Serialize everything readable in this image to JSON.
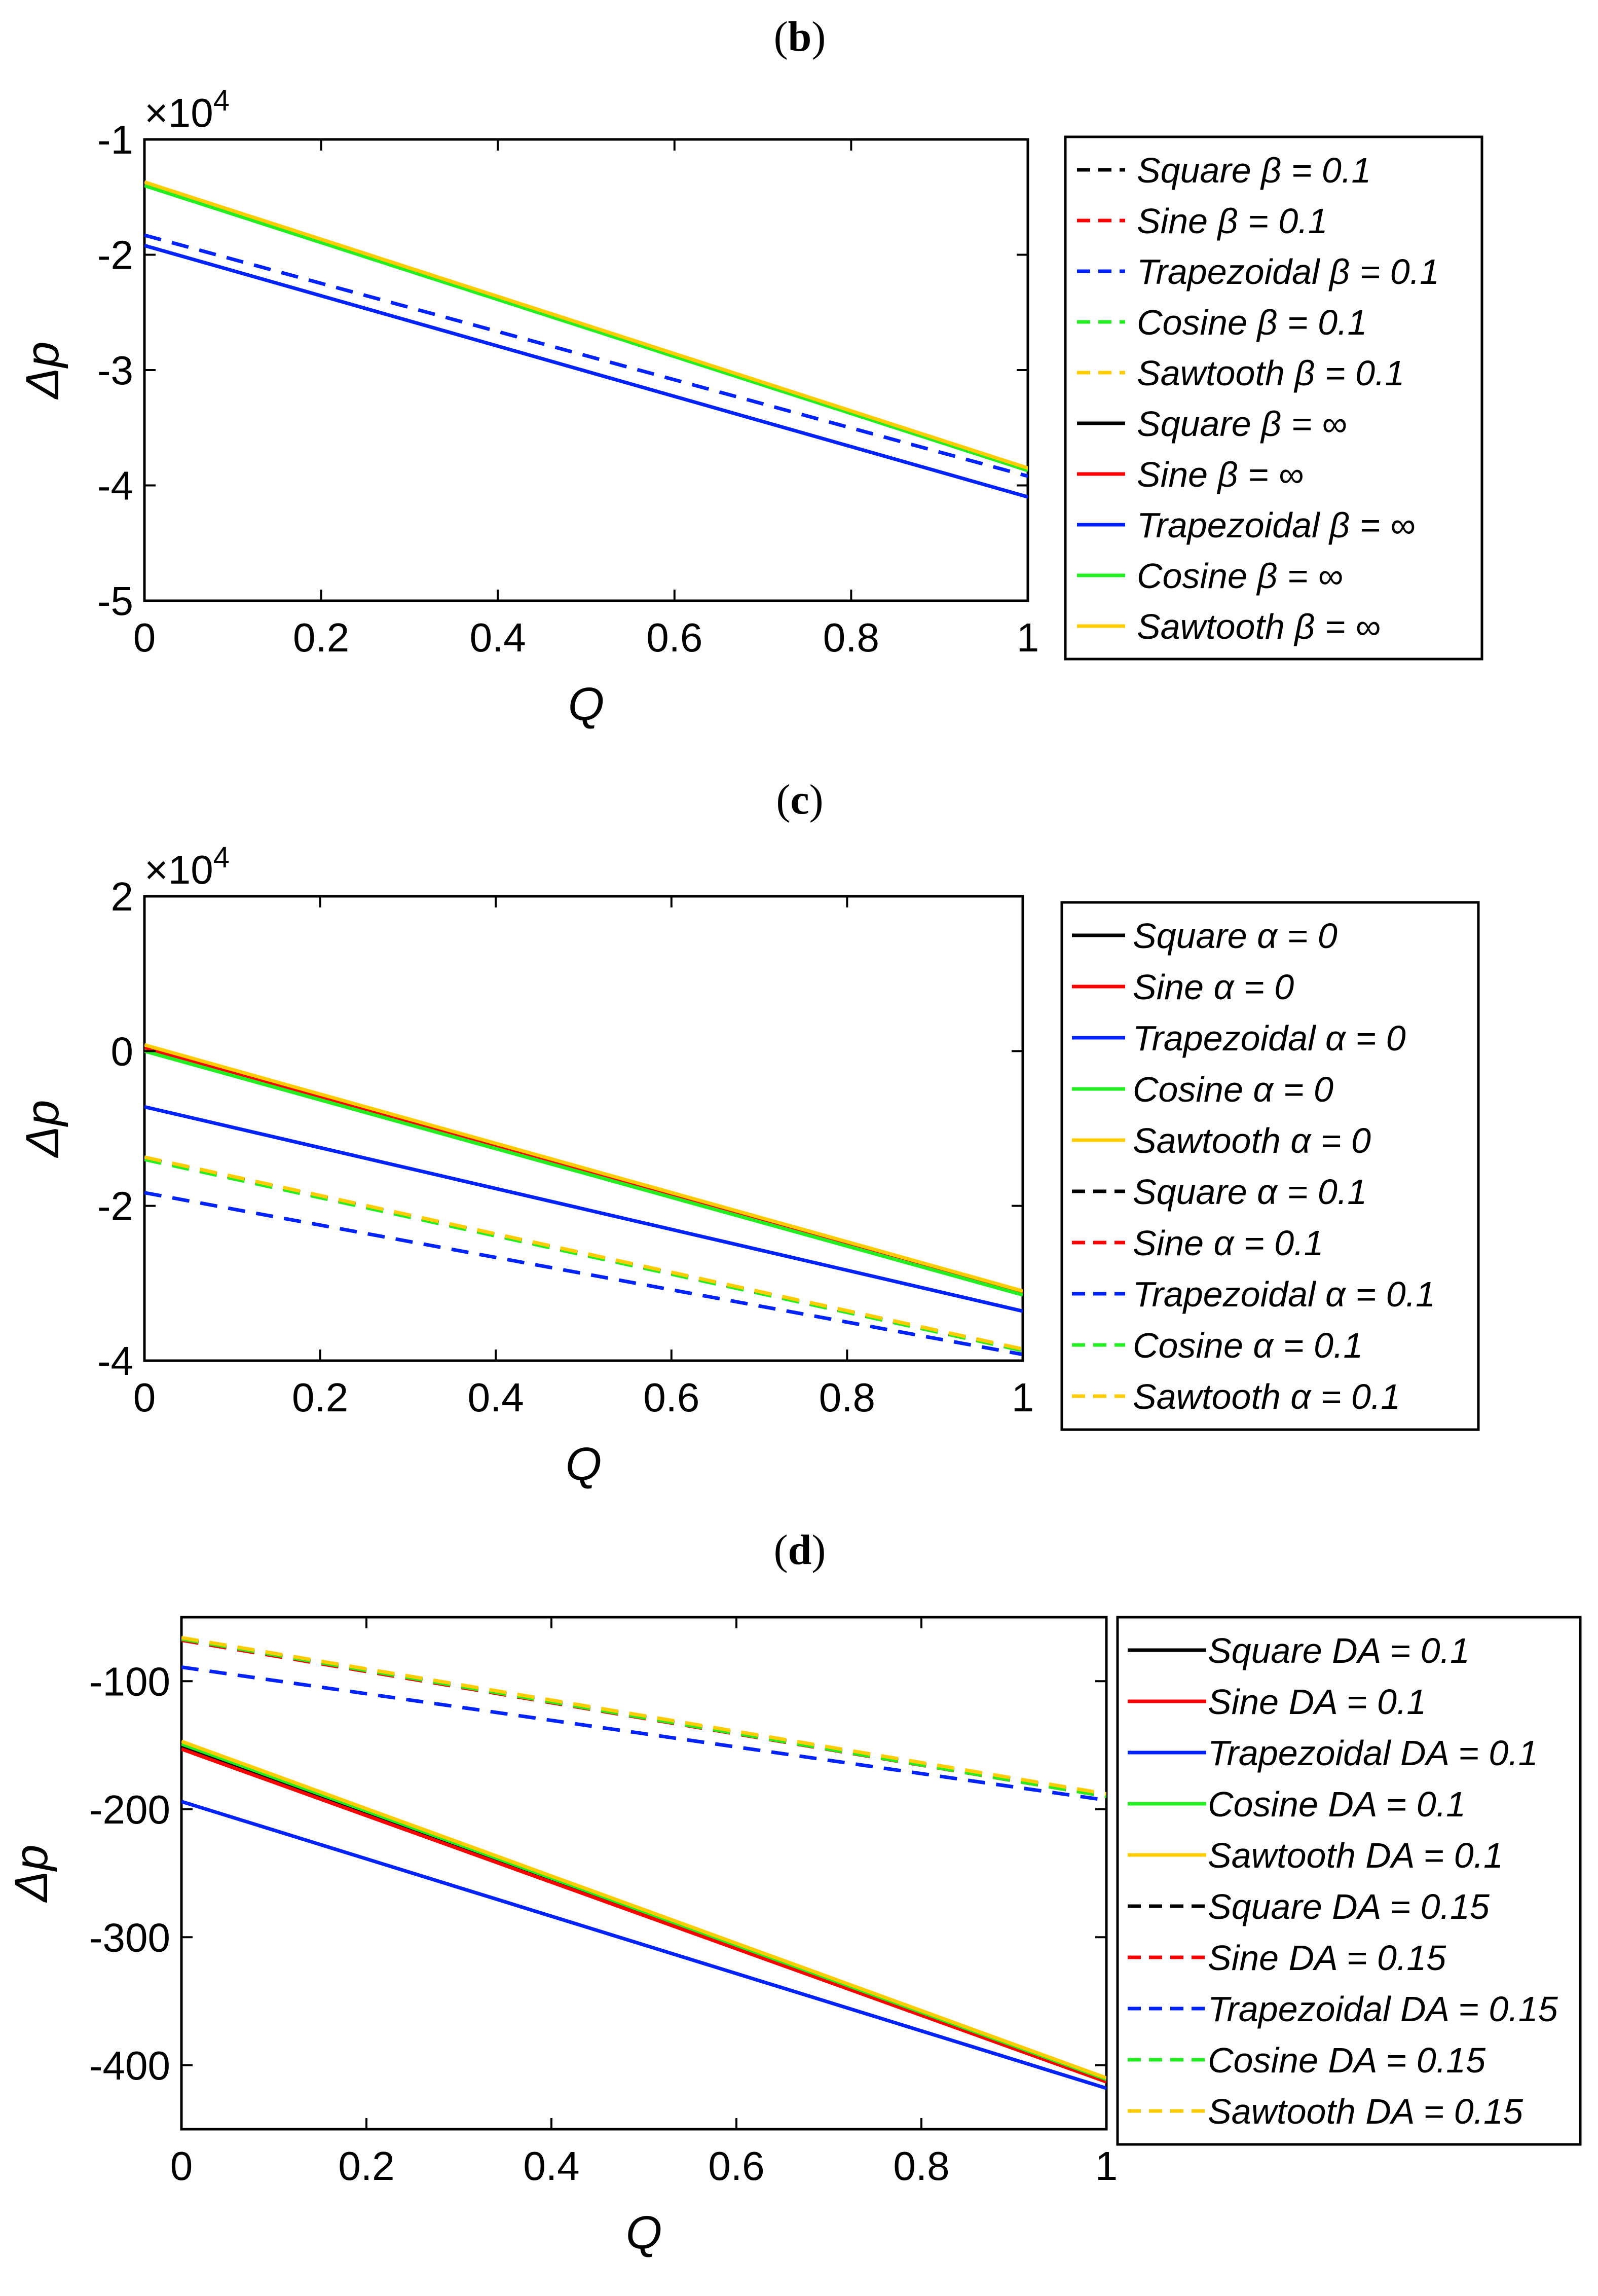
{
  "chart_data": [
    {
      "panel_label": "b",
      "type": "line",
      "xlabel": "Q",
      "ylabel": "Δp",
      "xlim": [
        0,
        1
      ],
      "ylim": [
        -5,
        -1
      ],
      "y_exponent": "×10",
      "y_exponent_power": "4",
      "xticks": [
        "0",
        "0.2",
        "0.4",
        "0.6",
        "0.8",
        "1"
      ],
      "yticks": [
        "-1",
        "-2",
        "-3",
        "-4",
        "-5"
      ],
      "ytick_values": [
        -1,
        -2,
        -3,
        -4,
        -5
      ],
      "legend_position": "right",
      "series": [
        {
          "name": "Square β = 0.1",
          "color": "#000000",
          "style": "dashed",
          "x": [
            0,
            1
          ],
          "y": [
            -1.38,
            -3.86
          ]
        },
        {
          "name": "Sine β = 0.1",
          "color": "#ff0000",
          "style": "dashed",
          "x": [
            0,
            1
          ],
          "y": [
            -1.39,
            -3.87
          ]
        },
        {
          "name": "Trapezoidal β = 0.1",
          "color": "#0022ff",
          "style": "dashed",
          "x": [
            0,
            1
          ],
          "y": [
            -1.83,
            -3.92
          ]
        },
        {
          "name": "Cosine β = 0.1",
          "color": "#22ee22",
          "style": "dashed",
          "x": [
            0,
            1
          ],
          "y": [
            -1.4,
            -3.87
          ]
        },
        {
          "name": "Sawtooth β = 0.1",
          "color": "#ffcc00",
          "style": "dashed",
          "x": [
            0,
            1
          ],
          "y": [
            -1.37,
            -3.85
          ]
        },
        {
          "name": "Square β = ∞",
          "color": "#000000",
          "style": "solid",
          "x": [
            0,
            1
          ],
          "y": [
            -1.38,
            -3.86
          ]
        },
        {
          "name": "Sine β = ∞",
          "color": "#ff0000",
          "style": "solid",
          "x": [
            0,
            1
          ],
          "y": [
            -1.39,
            -3.87
          ]
        },
        {
          "name": "Trapezoidal β = ∞",
          "color": "#0022ff",
          "style": "solid",
          "x": [
            0,
            1
          ],
          "y": [
            -1.92,
            -4.1
          ]
        },
        {
          "name": "Cosine β = ∞",
          "color": "#22ee22",
          "style": "solid",
          "x": [
            0,
            1
          ],
          "y": [
            -1.4,
            -3.87
          ]
        },
        {
          "name": "Sawtooth β = ∞",
          "color": "#ffcc00",
          "style": "solid",
          "x": [
            0,
            1
          ],
          "y": [
            -1.37,
            -3.85
          ]
        }
      ]
    },
    {
      "panel_label": "c",
      "type": "line",
      "xlabel": "Q",
      "ylabel": "Δp",
      "xlim": [
        0,
        1
      ],
      "ylim": [
        -4,
        2
      ],
      "y_exponent": "×10",
      "y_exponent_power": "4",
      "xticks": [
        "0",
        "0.2",
        "0.4",
        "0.6",
        "0.8",
        "1"
      ],
      "yticks": [
        "2",
        "0",
        "-2",
        "-4"
      ],
      "ytick_values": [
        2,
        0,
        -2,
        -4
      ],
      "legend_position": "right",
      "series": [
        {
          "name": "Square α = 0",
          "color": "#000000",
          "style": "solid",
          "x": [
            0,
            1
          ],
          "y": [
            0.05,
            -3.12
          ]
        },
        {
          "name": "Sine α = 0",
          "color": "#ff0000",
          "style": "solid",
          "x": [
            0,
            1
          ],
          "y": [
            0.04,
            -3.13
          ]
        },
        {
          "name": "Trapezoidal α = 0",
          "color": "#0022ff",
          "style": "solid",
          "x": [
            0,
            1
          ],
          "y": [
            -0.72,
            -3.36
          ]
        },
        {
          "name": "Cosine α = 0",
          "color": "#22ee22",
          "style": "solid",
          "x": [
            0,
            1
          ],
          "y": [
            0.0,
            -3.15
          ]
        },
        {
          "name": "Sawtooth α = 0",
          "color": "#ffcc00",
          "style": "solid",
          "x": [
            0,
            1
          ],
          "y": [
            0.08,
            -3.1
          ]
        },
        {
          "name": "Square α = 0.1",
          "color": "#000000",
          "style": "dashed",
          "x": [
            0,
            1
          ],
          "y": [
            -1.38,
            -3.86
          ]
        },
        {
          "name": "Sine α = 0.1",
          "color": "#ff0000",
          "style": "dashed",
          "x": [
            0,
            1
          ],
          "y": [
            -1.39,
            -3.87
          ]
        },
        {
          "name": "Trapezoidal α = 0.1",
          "color": "#0022ff",
          "style": "dashed",
          "x": [
            0,
            1
          ],
          "y": [
            -1.83,
            -3.92
          ]
        },
        {
          "name": "Cosine α = 0.1",
          "color": "#22ee22",
          "style": "dashed",
          "x": [
            0,
            1
          ],
          "y": [
            -1.4,
            -3.87
          ]
        },
        {
          "name": "Sawtooth α = 0.1",
          "color": "#ffcc00",
          "style": "dashed",
          "x": [
            0,
            1
          ],
          "y": [
            -1.37,
            -3.85
          ]
        }
      ]
    },
    {
      "panel_label": "d",
      "type": "line",
      "xlabel": "Q",
      "ylabel": "Δp",
      "xlim": [
        0,
        1
      ],
      "ylim": [
        -450,
        -50
      ],
      "y_exponent": "",
      "y_exponent_power": "",
      "xticks": [
        "0",
        "0.2",
        "0.4",
        "0.6",
        "0.8",
        "1"
      ],
      "yticks": [
        "-100",
        "-200",
        "-300",
        "-400"
      ],
      "ytick_values": [
        -100,
        -200,
        -300,
        -400
      ],
      "legend_position": "right",
      "series": [
        {
          "name": "Square DA = 0.1",
          "color": "#000000",
          "style": "solid",
          "x": [
            0,
            1
          ],
          "y": [
            -151,
            -412
          ]
        },
        {
          "name": "Sine DA = 0.1",
          "color": "#ff0000",
          "style": "solid",
          "x": [
            0,
            1
          ],
          "y": [
            -153,
            -413
          ]
        },
        {
          "name": "Trapezoidal DA = 0.1",
          "color": "#0022ff",
          "style": "solid",
          "x": [
            0,
            1
          ],
          "y": [
            -194,
            -418
          ]
        },
        {
          "name": "Cosine DA = 0.1",
          "color": "#22ee22",
          "style": "solid",
          "x": [
            0,
            1
          ],
          "y": [
            -149,
            -411
          ]
        },
        {
          "name": "Sawtooth DA = 0.1",
          "color": "#ffcc00",
          "style": "solid",
          "x": [
            0,
            1
          ],
          "y": [
            -147,
            -410
          ]
        },
        {
          "name": "Square DA = 0.15",
          "color": "#000000",
          "style": "dashed",
          "x": [
            0,
            1
          ],
          "y": [
            -67,
            -189
          ]
        },
        {
          "name": "Sine DA = 0.15",
          "color": "#ff0000",
          "style": "dashed",
          "x": [
            0,
            1
          ],
          "y": [
            -68,
            -190
          ]
        },
        {
          "name": "Trapezoidal DA = 0.15",
          "color": "#0022ff",
          "style": "dashed",
          "x": [
            0,
            1
          ],
          "y": [
            -89,
            -193
          ]
        },
        {
          "name": "Cosine DA = 0.15",
          "color": "#22ee22",
          "style": "dashed",
          "x": [
            0,
            1
          ],
          "y": [
            -67,
            -190
          ]
        },
        {
          "name": "Sawtooth DA = 0.15",
          "color": "#ffcc00",
          "style": "dashed",
          "x": [
            0,
            1
          ],
          "y": [
            -66,
            -188
          ]
        }
      ]
    }
  ]
}
